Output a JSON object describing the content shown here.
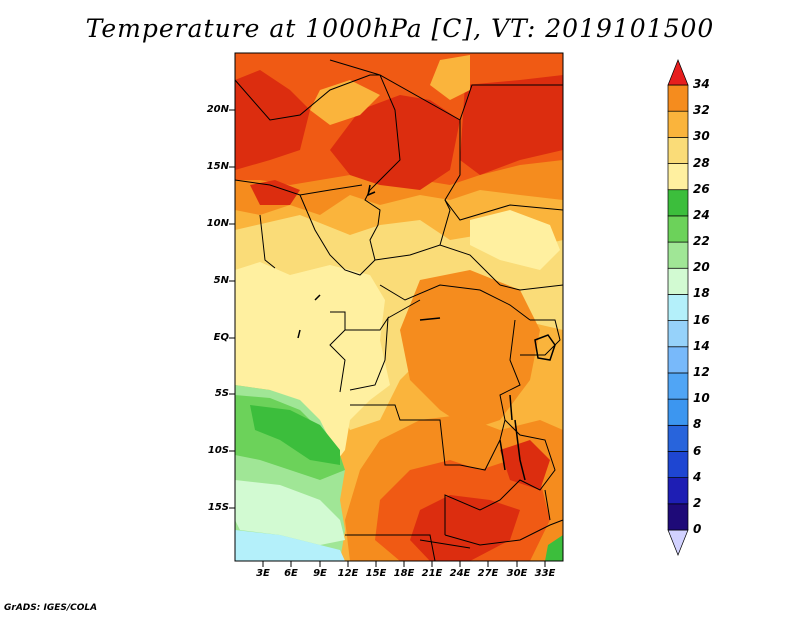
{
  "title": "Temperature at 1000hPa [C], VT: 2019101500",
  "footer": "GrADS: IGES/COLA",
  "lat_labels": [
    "20N",
    "15N",
    "10N",
    "5N",
    "EQ",
    "5S",
    "10S",
    "15S"
  ],
  "lon_labels": [
    "3E",
    "6E",
    "9E",
    "12E",
    "15E",
    "18E",
    "21E",
    "24E",
    "27E",
    "30E",
    "33E"
  ],
  "colorbar": {
    "labels": [
      "0",
      "2",
      "4",
      "6",
      "8",
      "10",
      "12",
      "14",
      "16",
      "18",
      "20",
      "22",
      "24",
      "26",
      "28",
      "30",
      "32",
      "34"
    ],
    "colors": [
      "#1e0a78",
      "#1e1eb4",
      "#1e46d2",
      "#2864dc",
      "#3c96f0",
      "#50a5f5",
      "#78b9fa",
      "#96d2fa",
      "#b4f0fa",
      "#d2fad2",
      "#a0e696",
      "#6cd25a",
      "#3cbe3c",
      "#fff0a0",
      "#fadc78",
      "#fab43c",
      "#f58c1e",
      "#f05a14",
      "#dc2d0f",
      "#e61e1e"
    ]
  },
  "chart_data": {
    "type": "heatmap",
    "variable": "Temperature at 1000hPa",
    "units": "C",
    "valid_time": "2019101500",
    "lon_range_deg_east": [
      0,
      35
    ],
    "lat_range_deg": [
      -19.5,
      24.5
    ],
    "color_scale": [
      0,
      34
    ]
  }
}
